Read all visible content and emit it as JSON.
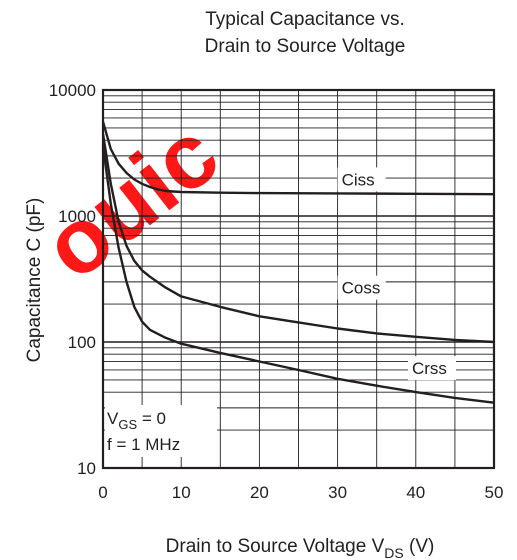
{
  "chart_data": {
    "type": "line",
    "title_lines": [
      "Typical Capacitance vs.",
      "Drain to Source Voltage"
    ],
    "xlabel": {
      "main": "Drain to Source Voltage  V",
      "sub": "DS",
      "tail": "  (V)"
    },
    "ylabel": "Capacitance  C  (pF)",
    "xlim": [
      0,
      50
    ],
    "ylim": [
      10,
      10000
    ],
    "yscale": "log",
    "xticks": [
      0,
      10,
      20,
      30,
      40,
      50
    ],
    "xtick_labels": [
      "0",
      "10",
      "20",
      "30",
      "40",
      "50"
    ],
    "yticks": [
      10,
      100,
      1000,
      10000
    ],
    "ytick_labels": [
      "10",
      "100",
      "1000",
      "10000"
    ],
    "grid": true,
    "series": [
      {
        "name": "Ciss",
        "x": [
          0,
          1,
          2,
          3,
          4,
          5,
          6,
          7,
          8,
          10,
          15,
          20,
          30,
          40,
          50
        ],
        "y": [
          5600,
          3400,
          2600,
          2200,
          1950,
          1800,
          1700,
          1630,
          1580,
          1550,
          1530,
          1520,
          1510,
          1500,
          1490
        ]
      },
      {
        "name": "Coss",
        "x": [
          0,
          1,
          2,
          3,
          4,
          5,
          6,
          8,
          10,
          15,
          20,
          25,
          30,
          35,
          40,
          45,
          50
        ],
        "y": [
          4500,
          1800,
          900,
          580,
          440,
          370,
          330,
          270,
          230,
          190,
          160,
          143,
          128,
          117,
          110,
          104,
          100
        ]
      },
      {
        "name": "Crss",
        "x": [
          0,
          1,
          2,
          3,
          4,
          5,
          6,
          8,
          10,
          15,
          20,
          25,
          30,
          35,
          40,
          45,
          50
        ],
        "y": [
          3600,
          1250,
          560,
          300,
          190,
          145,
          125,
          108,
          97,
          82,
          70,
          60,
          51,
          45,
          40,
          36,
          33
        ]
      }
    ],
    "annotation": {
      "line1_main": "V",
      "line1_sub": "GS",
      "line1_tail": " = 0",
      "line2": "f = 1 MHz"
    }
  },
  "watermark": "ouic"
}
